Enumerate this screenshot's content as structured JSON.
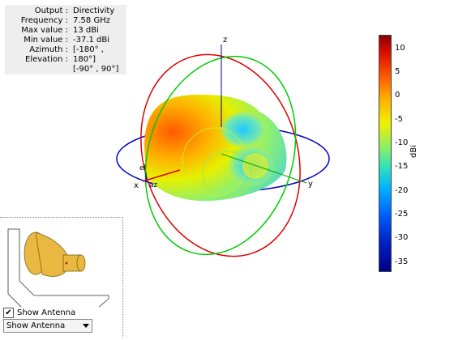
{
  "info": {
    "rows": [
      {
        "key": "Output :",
        "value": "Directivity"
      },
      {
        "key": "Frequency :",
        "value": "7.58 GHz"
      },
      {
        "key": "Max value :",
        "value": "13 dBi"
      },
      {
        "key": "Min value :",
        "value": "-37.1 dBi"
      },
      {
        "key": "Azimuth :",
        "value": "[-180° ,"
      },
      {
        "key": "Elevation :",
        "value": "180°]"
      },
      {
        "key": "",
        "value": "[-90° , 90°]"
      }
    ]
  },
  "axes": {
    "x": "x",
    "y": "y",
    "z": "z",
    "el": "el",
    "az": "az"
  },
  "colorbar": {
    "unit": "dBi",
    "ticks": [
      "10",
      "5",
      "0",
      "-5",
      "-10",
      "-15",
      "-20",
      "-25",
      "-30",
      "-35"
    ],
    "max": 13,
    "min": -37.1
  },
  "controls": {
    "show_antenna_label": "Show Antenna",
    "show_antenna_checked": true,
    "dropdown_value": "Show Antenna"
  },
  "colors": {
    "ring_blue": "#0000cc",
    "ring_red": "#dd0000",
    "ring_green": "#00cc00",
    "antenna": "#e8b840"
  }
}
